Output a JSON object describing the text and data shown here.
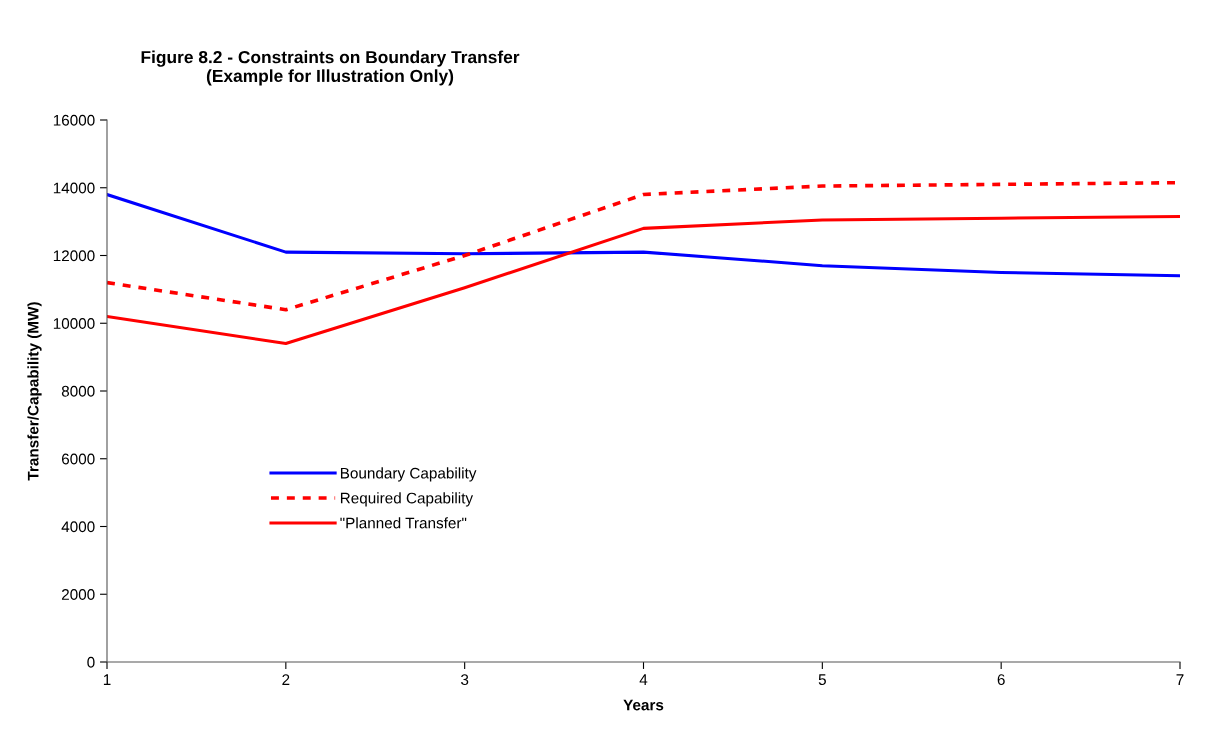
{
  "chart_data": {
    "type": "line",
    "title": "Figure 8.2 - Constraints on Boundary Transfer\n(Example for Illustration Only)",
    "xlabel": "Years",
    "ylabel": "Transfer/Capability (MW)",
    "x": [
      1,
      2,
      3,
      4,
      5,
      6,
      7
    ],
    "series": [
      {
        "name": "Boundary Capability",
        "color": "#0000ff",
        "line_style": "solid",
        "values": [
          13800,
          12100,
          12050,
          12100,
          11700,
          11500,
          11400
        ]
      },
      {
        "name": "Required Capability",
        "color": "#ff0000",
        "line_style": "dashed",
        "values": [
          11200,
          10400,
          12000,
          13800,
          14050,
          14100,
          14150
        ]
      },
      {
        "name": "\"Planned Transfer\"",
        "color": "#ff0000",
        "line_style": "solid",
        "values": [
          10200,
          9400,
          11050,
          12800,
          13050,
          13100,
          13150
        ]
      }
    ],
    "xlim": [
      1,
      7
    ],
    "xticks": [
      1,
      2,
      3,
      4,
      5,
      6,
      7
    ],
    "ylim": [
      0,
      16000
    ],
    "yticks": [
      0,
      2000,
      4000,
      6000,
      8000,
      10000,
      12000,
      14000,
      16000
    ],
    "grid": false,
    "legend": "center left",
    "marker": "none"
  }
}
